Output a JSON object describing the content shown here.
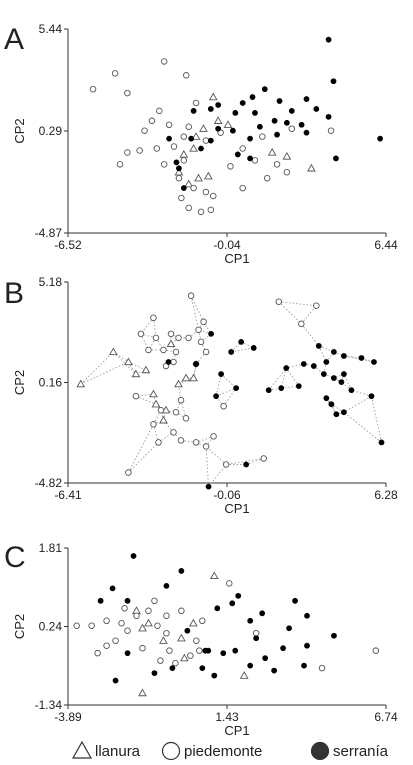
{
  "legend": {
    "items": [
      {
        "label": "llanura",
        "marker": "triangle"
      },
      {
        "label": "piedemonte",
        "marker": "circle-open"
      },
      {
        "label": "serranía",
        "marker": "circle-filled"
      }
    ]
  },
  "colors": {
    "marker_fill": "#000000",
    "marker_stroke": "#555555",
    "link": "#9a9a9a",
    "axis": "#333333"
  },
  "chart_data": [
    {
      "type": "scatter",
      "panel": "A",
      "xlabel": "CP1",
      "ylabel": "CP2",
      "xlim": [
        -6.52,
        6.44
      ],
      "ylim": [
        -4.87,
        5.44
      ],
      "xticks": [
        "-6.52",
        "-0.04",
        "6.44"
      ],
      "yticks": [
        "5.44",
        "0.29",
        "-4.87"
      ],
      "legend_position": "bottom",
      "series": [
        {
          "name": "llanura",
          "marker": "triangle",
          "points": [
            [
              -0.6,
              2.0
            ],
            [
              -1.0,
              0.4
            ],
            [
              -0.4,
              0.8
            ],
            [
              -1.4,
              -0.6
            ],
            [
              -2.0,
              -1.8
            ],
            [
              -1.6,
              -2.4
            ],
            [
              -1.2,
              -2.1
            ],
            [
              -0.8,
              -2.0
            ],
            [
              1.8,
              -0.8
            ],
            [
              2.4,
              -1.0
            ],
            [
              3.4,
              -1.6
            ],
            [
              -1.8,
              -0.9
            ],
            [
              0.0,
              0.6
            ],
            [
              -1.3,
              0.0
            ]
          ]
        },
        {
          "name": "piedemonte",
          "marker": "circle",
          "points": [
            [
              -5.5,
              2.4
            ],
            [
              -4.6,
              3.2
            ],
            [
              -4.1,
              2.2
            ],
            [
              -2.6,
              3.8
            ],
            [
              -1.7,
              3.1
            ],
            [
              -1.3,
              1.7
            ],
            [
              -2.8,
              1.3
            ],
            [
              -3.1,
              0.8
            ],
            [
              -3.4,
              0.3
            ],
            [
              -2.4,
              0.6
            ],
            [
              -1.6,
              0.5
            ],
            [
              -1.8,
              0.0
            ],
            [
              -0.9,
              -0.2
            ],
            [
              -0.3,
              0.2
            ],
            [
              0.6,
              -0.6
            ],
            [
              1.4,
              0.0
            ],
            [
              2.6,
              0.4
            ],
            [
              -3.6,
              -0.7
            ],
            [
              -2.9,
              -0.6
            ],
            [
              -2.2,
              -0.5
            ],
            [
              -2.6,
              -1.4
            ],
            [
              -1.8,
              -1.2
            ],
            [
              -2.0,
              -2.1
            ],
            [
              -1.4,
              -2.6
            ],
            [
              -0.9,
              -2.8
            ],
            [
              -0.6,
              -3.0
            ],
            [
              -1.9,
              -3.1
            ],
            [
              -1.6,
              -3.6
            ],
            [
              -1.1,
              -3.8
            ],
            [
              -0.7,
              -3.7
            ],
            [
              0.1,
              -1.5
            ],
            [
              1.1,
              -1.2
            ],
            [
              1.6,
              -2.1
            ],
            [
              2.4,
              -1.8
            ],
            [
              0.6,
              -2.6
            ],
            [
              -4.1,
              -0.8
            ],
            [
              -4.4,
              -1.4
            ],
            [
              4.2,
              0.3
            ],
            [
              2.0,
              -1.4
            ]
          ]
        },
        {
          "name": "serranía",
          "marker": "circle-filled",
          "points": [
            [
              4.1,
              4.9
            ],
            [
              4.3,
              2.8
            ],
            [
              1.5,
              2.4
            ],
            [
              1.0,
              2.0
            ],
            [
              -0.4,
              1.6
            ],
            [
              0.6,
              1.7
            ],
            [
              2.1,
              1.8
            ],
            [
              3.2,
              1.9
            ],
            [
              -1.4,
              1.3
            ],
            [
              -0.7,
              1.4
            ],
            [
              0.3,
              1.2
            ],
            [
              1.1,
              1.2
            ],
            [
              2.6,
              1.3
            ],
            [
              3.6,
              1.4
            ],
            [
              1.9,
              0.8
            ],
            [
              2.4,
              0.7
            ],
            [
              1.3,
              0.5
            ],
            [
              3.0,
              0.6
            ],
            [
              4.1,
              1.0
            ],
            [
              -0.4,
              0.4
            ],
            [
              0.2,
              0.3
            ],
            [
              -1.5,
              -0.1
            ],
            [
              -0.7,
              -0.2
            ],
            [
              0.9,
              -0.1
            ],
            [
              2.0,
              0.1
            ],
            [
              3.2,
              0.2
            ],
            [
              -2.4,
              -0.1
            ],
            [
              -1.1,
              -0.6
            ],
            [
              0.4,
              -0.9
            ],
            [
              -2.1,
              -1.3
            ],
            [
              0.9,
              -1.1
            ],
            [
              6.2,
              -0.1
            ],
            [
              4.4,
              -1.1
            ],
            [
              -2.0,
              -1.6
            ],
            [
              -1.8,
              -2.6
            ]
          ]
        }
      ]
    },
    {
      "type": "scatter",
      "panel": "B",
      "xlabel": "CP1",
      "ylabel": "CP2",
      "xlim": [
        -6.41,
        6.28
      ],
      "ylim": [
        -4.82,
        5.18
      ],
      "xticks": [
        "-6.41",
        "-0.06",
        "6.28"
      ],
      "yticks": [
        "5.18",
        "0.16",
        "-4.82"
      ],
      "connectors": "dotted",
      "series": [
        {
          "name": "llanura",
          "marker": "triangle",
          "points": [
            [
              -5.9,
              0.1
            ],
            [
              -4.6,
              1.7
            ],
            [
              -4.0,
              1.2
            ],
            [
              -3.7,
              0.6
            ],
            [
              -3.3,
              0.8
            ],
            [
              -3.0,
              -0.4
            ],
            [
              -2.9,
              -0.9
            ],
            [
              -2.5,
              -1.2
            ],
            [
              -2.3,
              2.1
            ],
            [
              -2.0,
              0.1
            ],
            [
              -1.7,
              0.4
            ],
            [
              -1.4,
              0.4
            ],
            [
              -2.6,
              -1.7
            ]
          ]
        },
        {
          "name": "piedemonte",
          "marker": "circle",
          "points": [
            [
              -1.5,
              4.5
            ],
            [
              2.0,
              4.2
            ],
            [
              2.9,
              3.1
            ],
            [
              3.5,
              4.0
            ],
            [
              -3.0,
              3.4
            ],
            [
              -3.5,
              2.6
            ],
            [
              -2.9,
              2.4
            ],
            [
              -2.3,
              2.6
            ],
            [
              -2.0,
              2.4
            ],
            [
              -1.6,
              2.4
            ],
            [
              -1.2,
              2.8
            ],
            [
              -1.0,
              3.2
            ],
            [
              -3.2,
              1.8
            ],
            [
              -2.6,
              1.8
            ],
            [
              -2.1,
              1.7
            ],
            [
              -1.1,
              2.2
            ],
            [
              -0.9,
              1.7
            ],
            [
              -1.3,
              1.1
            ],
            [
              -2.5,
              1.0
            ],
            [
              -2.2,
              1.2
            ],
            [
              -1.9,
              -0.7
            ],
            [
              -1.7,
              -1.6
            ],
            [
              -3.7,
              -0.5
            ],
            [
              -2.7,
              -1.2
            ],
            [
              -2.1,
              -1.3
            ],
            [
              -3.0,
              -1.9
            ],
            [
              -2.2,
              -2.3
            ],
            [
              -2.8,
              -2.8
            ],
            [
              -1.9,
              -2.7
            ],
            [
              -1.3,
              -2.8
            ],
            [
              -0.9,
              -3.0
            ],
            [
              -0.6,
              -2.5
            ],
            [
              -0.2,
              -1.0
            ],
            [
              1.4,
              -3.6
            ],
            [
              -4.0,
              -4.3
            ],
            [
              -0.1,
              -3.9
            ]
          ]
        },
        {
          "name": "serranía",
          "marker": "circle-filled",
          "points": [
            [
              -2.4,
              1.2
            ],
            [
              -1.3,
              1.1
            ],
            [
              -0.3,
              0.6
            ],
            [
              -0.7,
              2.6
            ],
            [
              0.1,
              1.7
            ],
            [
              0.5,
              2.2
            ],
            [
              1.0,
              1.9
            ],
            [
              -0.5,
              -0.5
            ],
            [
              0.3,
              -0.1
            ],
            [
              1.6,
              -0.2
            ],
            [
              2.1,
              -0.1
            ],
            [
              2.8,
              0.0
            ],
            [
              3.0,
              1.1
            ],
            [
              2.3,
              0.9
            ],
            [
              3.4,
              1.0
            ],
            [
              3.6,
              2.0
            ],
            [
              3.9,
              1.2
            ],
            [
              4.2,
              1.7
            ],
            [
              4.6,
              1.5
            ],
            [
              5.3,
              1.4
            ],
            [
              5.8,
              1.2
            ],
            [
              3.8,
              0.6
            ],
            [
              4.2,
              0.4
            ],
            [
              4.5,
              0.2
            ],
            [
              4.6,
              0.6
            ],
            [
              4.9,
              -0.2
            ],
            [
              5.7,
              -0.5
            ],
            [
              3.9,
              -0.6
            ],
            [
              4.1,
              -0.9
            ],
            [
              4.3,
              -1.4
            ],
            [
              4.6,
              -1.3
            ],
            [
              6.1,
              -2.8
            ],
            [
              0.7,
              -3.9
            ],
            [
              -0.8,
              -5.0
            ]
          ]
        }
      ]
    },
    {
      "type": "scatter",
      "panel": "C",
      "xlabel": "CP1",
      "ylabel": "CP2",
      "xlim": [
        -3.89,
        6.74
      ],
      "ylim": [
        -1.34,
        1.81
      ],
      "xticks": [
        "-3.89",
        "1.43",
        "6.74"
      ],
      "yticks": [
        "1.81",
        "0.24",
        "-1.34"
      ],
      "series": [
        {
          "name": "llanura",
          "marker": "triangle",
          "points": [
            [
              1.0,
              1.25
            ],
            [
              -1.6,
              0.55
            ],
            [
              -1.2,
              0.3
            ],
            [
              -1.4,
              0.2
            ],
            [
              0.3,
              0.3
            ],
            [
              -0.1,
              0.0
            ],
            [
              -0.7,
              -0.05
            ],
            [
              0.0,
              -0.4
            ],
            [
              2.0,
              -0.75
            ],
            [
              -1.4,
              -1.1
            ]
          ]
        },
        {
          "name": "piedemonte",
          "marker": "circle",
          "points": [
            [
              1.5,
              1.1
            ],
            [
              -3.6,
              0.25
            ],
            [
              -3.1,
              0.25
            ],
            [
              -2.6,
              0.35
            ],
            [
              -2.1,
              0.3
            ],
            [
              -2.3,
              -0.05
            ],
            [
              -2.6,
              -0.15
            ],
            [
              -2.9,
              -0.3
            ],
            [
              -2.0,
              0.6
            ],
            [
              -1.6,
              0.45
            ],
            [
              -1.2,
              0.55
            ],
            [
              -1.0,
              0.75
            ],
            [
              -0.6,
              0.45
            ],
            [
              -0.1,
              0.55
            ],
            [
              0.6,
              0.35
            ],
            [
              -1.9,
              0.15
            ],
            [
              -0.9,
              0.25
            ],
            [
              -0.6,
              0.1
            ],
            [
              0.4,
              -0.05
            ],
            [
              0.5,
              -0.25
            ],
            [
              0.2,
              -0.35
            ],
            [
              -0.5,
              -0.25
            ],
            [
              -1.4,
              -0.2
            ],
            [
              -0.8,
              -0.45
            ],
            [
              -0.3,
              -0.5
            ],
            [
              2.4,
              0.1
            ],
            [
              6.4,
              -0.25
            ],
            [
              4.6,
              -0.6
            ]
          ]
        },
        {
          "name": "serranía",
          "marker": "circle-filled",
          "points": [
            [
              -1.7,
              1.65
            ],
            [
              -0.1,
              1.35
            ],
            [
              -0.6,
              1.05
            ],
            [
              -2.4,
              1.0
            ],
            [
              -2.8,
              0.75
            ],
            [
              -1.9,
              0.75
            ],
            [
              1.8,
              0.85
            ],
            [
              1.6,
              0.7
            ],
            [
              3.7,
              0.75
            ],
            [
              1.1,
              0.6
            ],
            [
              2.6,
              0.5
            ],
            [
              2.2,
              0.35
            ],
            [
              2.4,
              0.0
            ],
            [
              4.1,
              0.45
            ],
            [
              3.5,
              0.2
            ],
            [
              5.0,
              0.05
            ],
            [
              0.1,
              0.15
            ],
            [
              0.7,
              -0.25
            ],
            [
              0.8,
              -0.25
            ],
            [
              0.6,
              -0.6
            ],
            [
              1.3,
              -0.3
            ],
            [
              1.7,
              -0.25
            ],
            [
              3.3,
              -0.2
            ],
            [
              4.1,
              -0.15
            ],
            [
              2.7,
              -0.4
            ],
            [
              1.0,
              -0.75
            ],
            [
              2.2,
              -0.55
            ],
            [
              3.0,
              -0.65
            ],
            [
              4.0,
              -0.55
            ],
            [
              -1.9,
              -0.3
            ],
            [
              -0.4,
              -0.6
            ],
            [
              -2.3,
              -0.85
            ],
            [
              -1.0,
              -0.7
            ]
          ]
        }
      ]
    }
  ]
}
